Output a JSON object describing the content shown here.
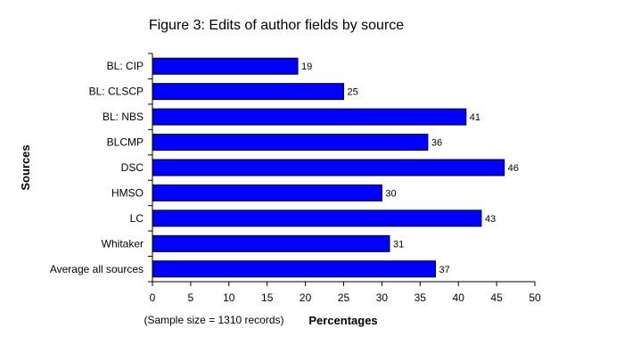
{
  "chart_data": {
    "type": "bar",
    "orientation": "horizontal",
    "title": "Figure 3: Edits of author fields by source",
    "xlabel": "Percentages",
    "ylabel": "Sources",
    "note": "(Sample size = 1310 records)",
    "categories": [
      "BL: CIP",
      "BL: CLSCP",
      "BL: NBS",
      "BLCMP",
      "DSC",
      "HMSO",
      "LC",
      "Whitaker",
      "Average all sources"
    ],
    "values": [
      19,
      25,
      41,
      36,
      46,
      30,
      43,
      31,
      37
    ],
    "xlim": [
      0,
      50
    ],
    "xticks": [
      0,
      5,
      10,
      15,
      20,
      25,
      30,
      35,
      40,
      45,
      50
    ],
    "grid": false,
    "legend": "none",
    "bar_color": "#0000ff",
    "bar_outline": "#000000"
  }
}
